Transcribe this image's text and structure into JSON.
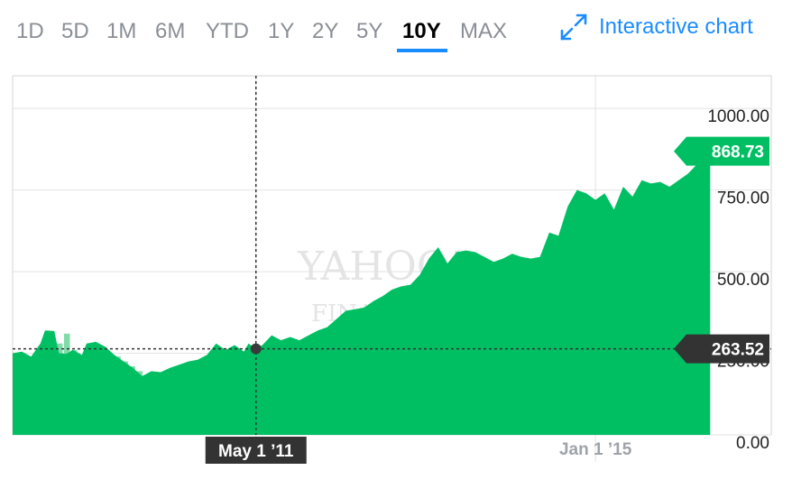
{
  "range_tabs": [
    {
      "label": "1D",
      "active": false
    },
    {
      "label": "5D",
      "active": false
    },
    {
      "label": "1M",
      "active": false
    },
    {
      "label": "6M",
      "active": false
    },
    {
      "label": "YTD",
      "active": false
    },
    {
      "label": "1Y",
      "active": false
    },
    {
      "label": "2Y",
      "active": false
    },
    {
      "label": "5Y",
      "active": false
    },
    {
      "label": "10Y",
      "active": true
    },
    {
      "label": "MAX",
      "active": false
    }
  ],
  "interactive_chart_label": "Interactive chart",
  "expand_icon": "expand-arrows-icon",
  "colors": {
    "accent": "#1a8cff",
    "area": "#00bf63",
    "volume": "#7fdca8",
    "current_marker": "#f5a20a",
    "tooltip_bg": "#333333"
  },
  "watermark": [
    "YAHOO!",
    "FINANCE"
  ],
  "chart_data": {
    "type": "area",
    "title": "",
    "xlabel": "",
    "ylabel": "",
    "ylim": [
      0,
      1100
    ],
    "yticks": [
      {
        "value": 1000,
        "label": "1000.00"
      },
      {
        "value": 750,
        "label": "750.00"
      },
      {
        "value": 500,
        "label": "500.00"
      },
      {
        "value": 250,
        "label": "250.00"
      },
      {
        "value": 0,
        "label": "0.00"
      }
    ],
    "xlim": [
      2008.7,
      2016.9
    ],
    "xticks": [
      {
        "value": 2011.33,
        "label": "May 1 ’11"
      },
      {
        "value": 2015.0,
        "label": "Jan 1 ’15"
      }
    ],
    "grid": true,
    "series": [
      {
        "values": [
          [
            2008.7,
            250
          ],
          [
            2008.8,
            255
          ],
          [
            2008.9,
            240
          ],
          [
            2009.0,
            280
          ],
          [
            2009.05,
            320
          ],
          [
            2009.15,
            318
          ],
          [
            2009.2,
            250
          ],
          [
            2009.28,
            248
          ],
          [
            2009.35,
            260
          ],
          [
            2009.45,
            245
          ],
          [
            2009.5,
            280
          ],
          [
            2009.6,
            285
          ],
          [
            2009.7,
            270
          ],
          [
            2009.8,
            245
          ],
          [
            2009.9,
            225
          ],
          [
            2010.0,
            205
          ],
          [
            2010.1,
            180
          ],
          [
            2010.2,
            195
          ],
          [
            2010.3,
            192
          ],
          [
            2010.4,
            205
          ],
          [
            2010.5,
            215
          ],
          [
            2010.6,
            225
          ],
          [
            2010.7,
            230
          ],
          [
            2010.8,
            245
          ],
          [
            2010.9,
            280
          ],
          [
            2011.0,
            260
          ],
          [
            2011.1,
            275
          ],
          [
            2011.2,
            255
          ],
          [
            2011.25,
            280
          ],
          [
            2011.33,
            263.5
          ],
          [
            2011.4,
            275
          ],
          [
            2011.5,
            305
          ],
          [
            2011.6,
            290
          ],
          [
            2011.7,
            300
          ],
          [
            2011.8,
            290
          ],
          [
            2011.9,
            305
          ],
          [
            2012.0,
            320
          ],
          [
            2012.1,
            330
          ],
          [
            2012.2,
            355
          ],
          [
            2012.3,
            380
          ],
          [
            2012.4,
            385
          ],
          [
            2012.5,
            390
          ],
          [
            2012.6,
            410
          ],
          [
            2012.7,
            425
          ],
          [
            2012.8,
            445
          ],
          [
            2012.9,
            455
          ],
          [
            2013.0,
            460
          ],
          [
            2013.1,
            490
          ],
          [
            2013.2,
            540
          ],
          [
            2013.3,
            575
          ],
          [
            2013.4,
            525
          ],
          [
            2013.5,
            560
          ],
          [
            2013.6,
            565
          ],
          [
            2013.7,
            560
          ],
          [
            2013.8,
            545
          ],
          [
            2013.9,
            530
          ],
          [
            2014.0,
            540
          ],
          [
            2014.1,
            555
          ],
          [
            2014.2,
            545
          ],
          [
            2014.3,
            540
          ],
          [
            2014.4,
            545
          ],
          [
            2014.5,
            620
          ],
          [
            2014.6,
            610
          ],
          [
            2014.7,
            700
          ],
          [
            2014.8,
            750
          ],
          [
            2014.9,
            740
          ],
          [
            2015.0,
            720
          ],
          [
            2015.1,
            740
          ],
          [
            2015.2,
            690
          ],
          [
            2015.3,
            760
          ],
          [
            2015.4,
            730
          ],
          [
            2015.5,
            780
          ],
          [
            2015.6,
            770
          ],
          [
            2015.7,
            775
          ],
          [
            2015.8,
            760
          ],
          [
            2015.9,
            780
          ],
          [
            2016.0,
            800
          ],
          [
            2016.1,
            830
          ],
          [
            2016.2,
            840
          ],
          [
            2016.24,
            868.73
          ]
        ]
      }
    ],
    "volume": [
      250,
      240,
      230,
      220,
      250,
      200,
      280,
      310,
      260,
      245,
      230,
      270,
      255,
      245,
      240,
      225,
      210,
      195,
      180,
      170,
      165,
      170,
      175,
      180,
      190,
      195,
      210,
      205,
      225,
      235,
      240,
      250,
      235,
      230,
      225,
      225,
      240,
      250,
      260,
      255,
      245,
      240,
      235,
      230,
      220,
      210,
      200,
      190,
      180,
      170,
      160,
      150,
      140,
      130,
      120,
      115,
      110,
      105,
      100,
      95,
      90,
      85,
      80,
      75,
      70,
      65,
      60,
      55,
      50,
      50,
      48,
      46,
      45,
      44,
      43,
      42,
      41,
      40,
      40,
      40,
      42,
      44,
      46,
      48,
      50,
      48,
      46,
      45,
      44,
      43,
      42,
      41,
      40,
      40,
      39,
      38
    ],
    "crosshair": {
      "x": 2011.33,
      "y": 263.52,
      "x_label": "May 1 ’11",
      "y_label": "263.52"
    },
    "last": {
      "x": 2016.24,
      "y": 868.73,
      "label": "868.73"
    }
  }
}
